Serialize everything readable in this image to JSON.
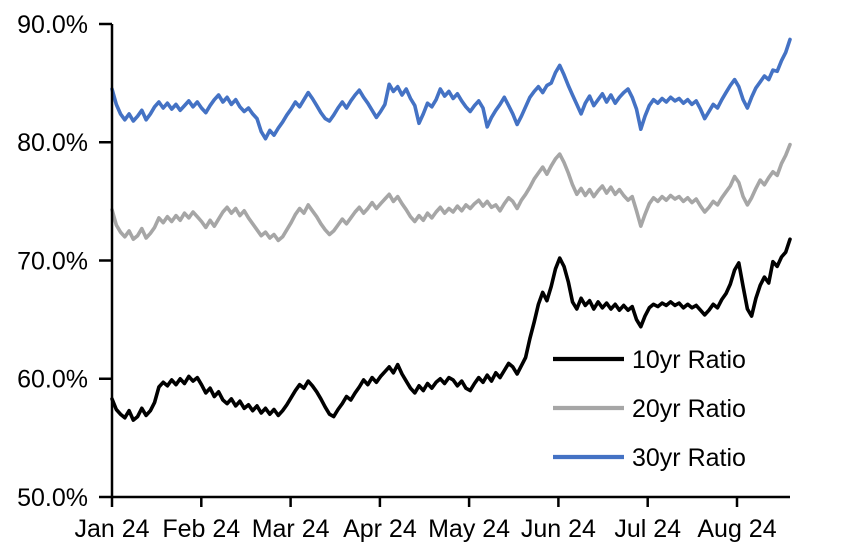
{
  "chart_data": {
    "type": "line",
    "title": "",
    "xlabel": "",
    "ylabel": "",
    "ylim": [
      50,
      90
    ],
    "grid": false,
    "legend_position": "inside-lower-right",
    "ytick_labels": [
      "90.0%",
      "80.0%",
      "70.0%",
      "60.0%",
      "50.0%"
    ],
    "ytick_values": [
      90,
      80,
      70,
      60,
      50
    ],
    "xtick_labels": [
      "Jan 24",
      "Feb 24",
      "Mar 24",
      "Apr 24",
      "May 24",
      "Jun 24",
      "Jul 24",
      "Aug 24"
    ],
    "series": [
      {
        "name": "10yr Ratio",
        "color": "#000000",
        "values": [
          58.3,
          57.4,
          57.0,
          56.7,
          57.3,
          56.5,
          56.8,
          57.5,
          56.9,
          57.3,
          58.0,
          59.3,
          59.7,
          59.4,
          59.9,
          59.5,
          60.0,
          59.6,
          60.2,
          59.8,
          60.1,
          59.5,
          58.8,
          59.2,
          58.5,
          58.9,
          58.2,
          57.9,
          58.3,
          57.7,
          58.1,
          57.5,
          57.8,
          57.3,
          57.7,
          57.1,
          57.5,
          57.0,
          57.4,
          56.9,
          57.3,
          57.8,
          58.4,
          59.0,
          59.5,
          59.2,
          59.8,
          59.4,
          58.9,
          58.3,
          57.6,
          57.0,
          56.8,
          57.4,
          57.9,
          58.5,
          58.2,
          58.8,
          59.3,
          59.9,
          59.5,
          60.1,
          59.7,
          60.2,
          60.6,
          61.0,
          60.5,
          61.2,
          60.4,
          59.8,
          59.2,
          58.8,
          59.4,
          59.0,
          59.6,
          59.2,
          59.7,
          60.0,
          59.6,
          60.1,
          59.9,
          59.4,
          59.8,
          59.2,
          59.0,
          59.6,
          60.1,
          59.7,
          60.3,
          59.8,
          60.5,
          60.1,
          60.7,
          61.3,
          61.0,
          60.4,
          61.1,
          61.8,
          63.4,
          64.8,
          66.3,
          67.3,
          66.6,
          67.8,
          69.3,
          70.2,
          69.5,
          68.2,
          66.5,
          65.9,
          66.8,
          66.2,
          66.6,
          65.9,
          66.5,
          66.0,
          66.4,
          65.9,
          66.3,
          65.8,
          66.2,
          65.8,
          66.1,
          65.0,
          64.4,
          65.3,
          66.0,
          66.3,
          66.1,
          66.4,
          66.2,
          66.5,
          66.2,
          66.4,
          66.0,
          66.3,
          66.0,
          66.2,
          65.8,
          65.4,
          65.8,
          66.3,
          66.0,
          66.7,
          67.2,
          68.0,
          69.2,
          69.8,
          67.8,
          65.9,
          65.3,
          66.8,
          67.9,
          68.6,
          68.1,
          69.9,
          69.5,
          70.3,
          70.7,
          71.8
        ]
      },
      {
        "name": "20yr Ratio",
        "color": "#A6A6A6",
        "values": [
          74.3,
          73.0,
          72.4,
          72.0,
          72.5,
          71.8,
          72.1,
          72.7,
          71.9,
          72.3,
          72.8,
          73.6,
          73.2,
          73.7,
          73.3,
          73.8,
          73.4,
          74.0,
          73.6,
          74.1,
          73.7,
          73.3,
          72.8,
          73.4,
          72.9,
          73.5,
          74.1,
          74.5,
          74.0,
          74.4,
          73.8,
          74.2,
          73.6,
          73.1,
          72.6,
          72.1,
          72.4,
          71.9,
          72.2,
          71.7,
          72.0,
          72.6,
          73.2,
          73.9,
          74.4,
          74.0,
          74.7,
          74.2,
          73.7,
          73.1,
          72.6,
          72.2,
          72.5,
          73.0,
          73.5,
          73.1,
          73.6,
          74.1,
          74.5,
          74.0,
          74.4,
          74.9,
          74.4,
          74.8,
          75.2,
          75.6,
          75.0,
          75.4,
          74.8,
          74.3,
          73.7,
          73.3,
          73.8,
          73.4,
          74.0,
          73.6,
          74.1,
          74.5,
          74.0,
          74.4,
          74.1,
          74.6,
          74.2,
          74.7,
          74.4,
          74.8,
          75.1,
          74.6,
          75.0,
          74.5,
          74.7,
          74.2,
          74.8,
          75.3,
          75.0,
          74.4,
          75.1,
          75.6,
          76.2,
          76.9,
          77.4,
          77.9,
          77.3,
          78.0,
          78.6,
          79.0,
          78.3,
          77.4,
          76.4,
          75.6,
          76.1,
          75.5,
          76.0,
          75.4,
          75.9,
          76.3,
          75.7,
          76.2,
          75.6,
          76.0,
          75.5,
          75.1,
          75.4,
          74.2,
          72.9,
          73.9,
          74.8,
          75.3,
          75.0,
          75.4,
          75.1,
          75.5,
          75.2,
          75.4,
          75.0,
          75.3,
          74.9,
          75.2,
          74.6,
          74.1,
          74.5,
          75.0,
          74.7,
          75.3,
          75.8,
          76.3,
          77.1,
          76.6,
          75.4,
          74.7,
          75.3,
          76.1,
          76.8,
          76.4,
          77.0,
          77.5,
          77.2,
          78.2,
          78.9,
          79.8
        ]
      },
      {
        "name": "30yr Ratio",
        "color": "#4472C4",
        "values": [
          84.5,
          83.2,
          82.4,
          81.9,
          82.4,
          81.8,
          82.2,
          82.7,
          81.9,
          82.4,
          83.0,
          83.4,
          82.9,
          83.3,
          82.8,
          83.2,
          82.7,
          83.1,
          83.5,
          83.0,
          83.4,
          82.9,
          82.5,
          83.1,
          83.6,
          84.0,
          83.4,
          83.8,
          83.2,
          83.6,
          83.0,
          82.6,
          82.9,
          82.4,
          82.0,
          80.9,
          80.3,
          81.0,
          80.6,
          81.2,
          81.7,
          82.3,
          82.8,
          83.4,
          83.0,
          83.6,
          84.2,
          83.7,
          83.1,
          82.5,
          82.0,
          81.8,
          82.3,
          82.9,
          83.4,
          82.9,
          83.5,
          84.0,
          84.4,
          83.8,
          83.3,
          82.7,
          82.1,
          82.6,
          83.2,
          84.9,
          84.3,
          84.7,
          84.0,
          84.5,
          83.7,
          83.1,
          81.6,
          82.4,
          83.3,
          83.0,
          83.6,
          84.5,
          83.9,
          84.3,
          83.7,
          84.1,
          83.5,
          83.0,
          82.6,
          83.1,
          83.5,
          82.9,
          81.3,
          82.1,
          82.7,
          83.2,
          83.8,
          83.1,
          82.4,
          81.5,
          82.2,
          83.0,
          83.8,
          84.3,
          84.7,
          84.2,
          84.8,
          85.0,
          85.9,
          86.5,
          85.7,
          84.8,
          84.0,
          83.2,
          82.4,
          83.3,
          83.9,
          83.1,
          83.6,
          84.1,
          83.4,
          84.0,
          83.3,
          83.8,
          84.2,
          84.5,
          83.8,
          82.8,
          81.1,
          82.2,
          83.1,
          83.6,
          83.3,
          83.7,
          83.4,
          83.8,
          83.5,
          83.7,
          83.3,
          83.6,
          83.2,
          83.5,
          82.8,
          82.0,
          82.6,
          83.2,
          82.9,
          83.6,
          84.2,
          84.8,
          85.3,
          84.7,
          83.6,
          82.9,
          83.8,
          84.6,
          85.1,
          85.6,
          85.3,
          86.1,
          86.0,
          86.9,
          87.6,
          88.7
        ]
      }
    ]
  }
}
